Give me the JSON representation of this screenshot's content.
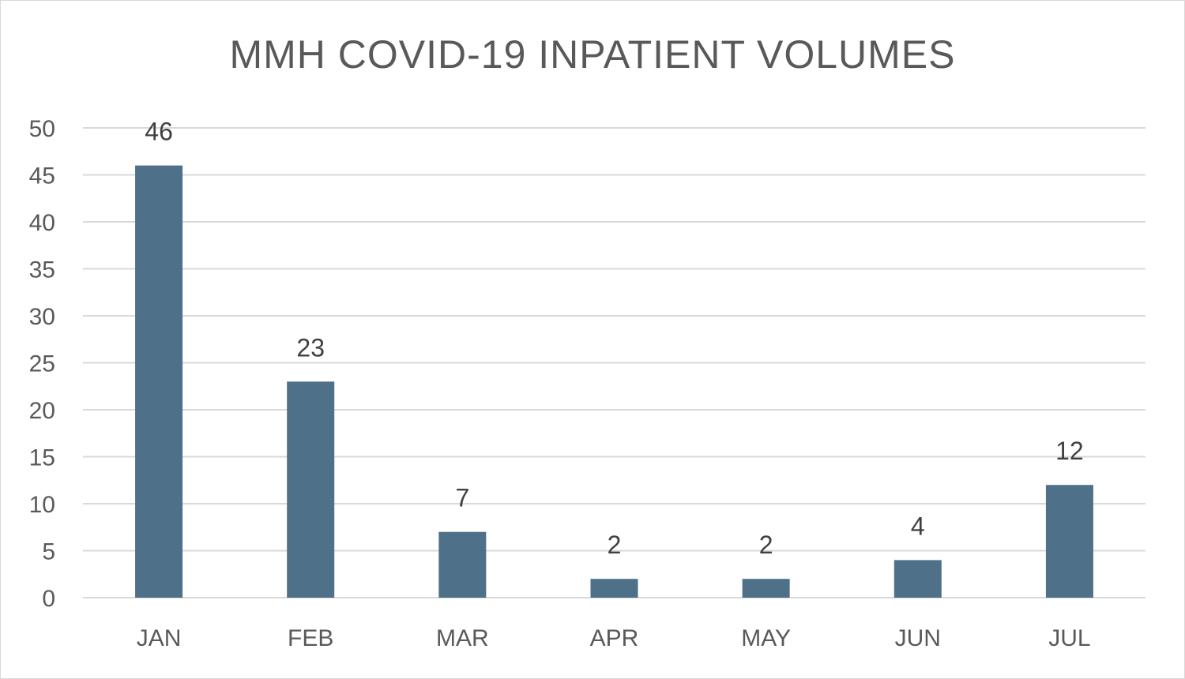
{
  "chart_data": {
    "type": "bar",
    "title": "MMH COVID-19 INPATIENT VOLUMES",
    "xlabel": "",
    "ylabel": "",
    "categories": [
      "JAN",
      "FEB",
      "MAR",
      "APR",
      "MAY",
      "JUN",
      "JUL"
    ],
    "values": [
      46,
      23,
      7,
      2,
      2,
      4,
      12
    ],
    "ylim": [
      0,
      50
    ],
    "yticks": [
      0,
      5,
      10,
      15,
      20,
      25,
      30,
      35,
      40,
      45,
      50
    ],
    "grid": true,
    "legend": "none",
    "data_labels": true,
    "bar_color": "#4e7089",
    "grid_color": "#d9d9d9",
    "text_color": "#595959"
  }
}
